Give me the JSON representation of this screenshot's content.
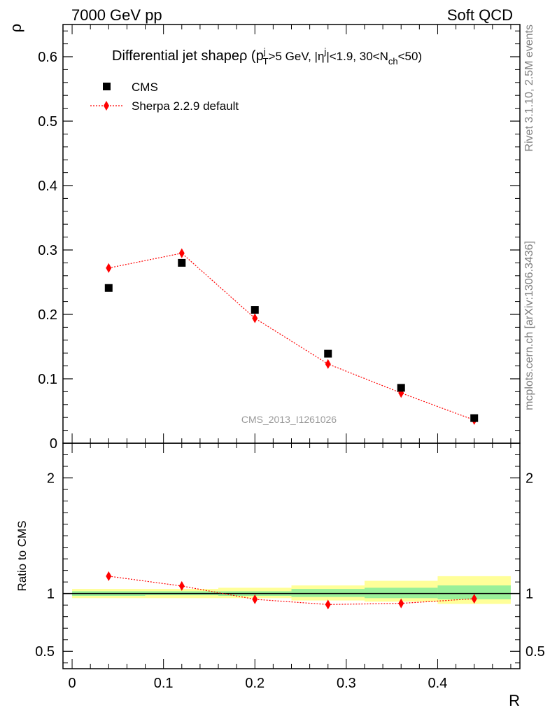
{
  "header": {
    "left": "7000 GeV pp",
    "right": "Soft QCD"
  },
  "side_text": {
    "rivet": "Rivet 3.1.10,  2.5M events",
    "source": "mcplots.cern.ch [arXiv:1306.3436]"
  },
  "chart_data": [
    {
      "type": "scatter",
      "title": "Differential jet shape ρ (p_T^j>5 GeV, |η^j|<1.9, 30<N_ch<50)",
      "ylabel": "ρ",
      "xlabel": "R",
      "watermark": "CMS_2013_I1261026",
      "xlim": [
        -0.01,
        0.49
      ],
      "ylim": [
        0,
        0.65
      ],
      "y_ticks": [
        "0",
        "0.1",
        "0.2",
        "0.3",
        "0.4",
        "0.5",
        "0.6"
      ],
      "legend_position": "top-left",
      "series": [
        {
          "name": "CMS",
          "marker": "square",
          "color": "#000000",
          "x": [
            0.04,
            0.12,
            0.2,
            0.28,
            0.36,
            0.44
          ],
          "y": [
            0.241,
            0.28,
            0.207,
            0.139,
            0.086,
            0.039
          ]
        },
        {
          "name": "Sherpa 2.2.9 default",
          "marker": "diamond",
          "line": "dotted",
          "color": "#ff0000",
          "x": [
            0.04,
            0.12,
            0.2,
            0.28,
            0.36,
            0.44
          ],
          "y": [
            0.272,
            0.295,
            0.194,
            0.123,
            0.078,
            0.036
          ]
        }
      ]
    },
    {
      "type": "line",
      "ylabel": "Ratio to CMS",
      "xlabel": "R",
      "xlim": [
        -0.01,
        0.49
      ],
      "ylim": [
        0.35,
        2.3
      ],
      "x_ticks": [
        "0",
        "0.1",
        "0.2",
        "0.3",
        "0.4"
      ],
      "y_ticks": [
        "0.5",
        "1",
        "2"
      ],
      "reference_line": 1,
      "uncertainty_bands": {
        "bin_edges": [
          0,
          0.08,
          0.16,
          0.24,
          0.32,
          0.4,
          0.48
        ],
        "stat": [
          [
            0.98,
            1.02
          ],
          [
            0.985,
            1.02
          ],
          [
            0.98,
            1.02
          ],
          [
            0.97,
            1.04
          ],
          [
            0.96,
            1.05
          ],
          [
            0.95,
            1.07
          ]
        ],
        "total": [
          [
            0.96,
            1.04
          ],
          [
            0.96,
            1.04
          ],
          [
            0.96,
            1.05
          ],
          [
            0.94,
            1.07
          ],
          [
            0.93,
            1.11
          ],
          [
            0.91,
            1.15
          ]
        ],
        "stat_color": "#99f099",
        "total_color": "#ffff99"
      },
      "series": [
        {
          "name": "Sherpa 2.2.9 default",
          "marker": "diamond",
          "line": "dotted",
          "color": "#ff0000",
          "x": [
            0.04,
            0.12,
            0.2,
            0.28,
            0.36,
            0.44
          ],
          "y": [
            1.15,
            1.065,
            0.95,
            0.905,
            0.915,
            0.955
          ]
        }
      ]
    }
  ]
}
